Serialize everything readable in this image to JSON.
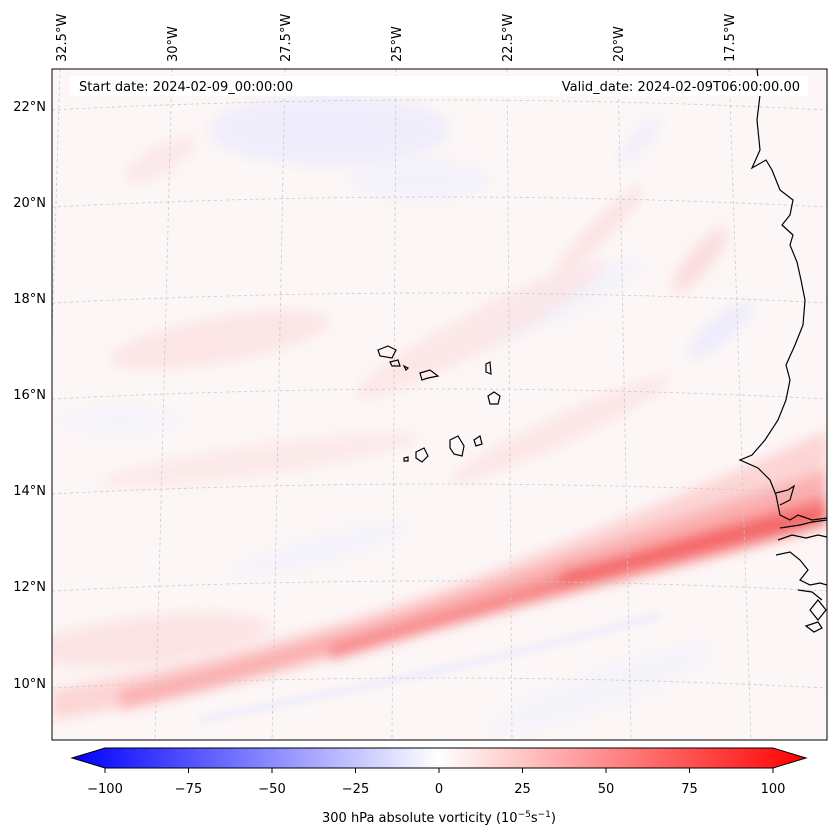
{
  "header": {
    "start_date": "Start date: 2024-02-09_00:00:00",
    "valid_date": "Valid_date: 2024-02-09T06:00:00.00"
  },
  "map": {
    "lon_labels": [
      "32.5°W",
      "30°W",
      "27.5°W",
      "25°W",
      "22.5°W",
      "20°W",
      "17.5°W"
    ],
    "lat_labels": [
      "22°N",
      "20°N",
      "18°N",
      "16°N",
      "14°N",
      "12°N",
      "10°N"
    ],
    "gridlines": "dashed light gray",
    "coastline_color": "#000000",
    "field_colormap": "bwr"
  },
  "colorbar": {
    "label": "300 hPa absolute vorticity (10",
    "label_exp1": "−5",
    "label_mid": "s",
    "label_exp2": "−1",
    "label_end": ")",
    "ticks": [
      "−100",
      "−75",
      "−50",
      "−25",
      "0",
      "25",
      "50",
      "75",
      "100"
    ],
    "min": -100,
    "max": 100,
    "extend": "both",
    "colors": {
      "low": "#0000ff",
      "mid": "#ffffff",
      "high": "#ff0000"
    }
  }
}
